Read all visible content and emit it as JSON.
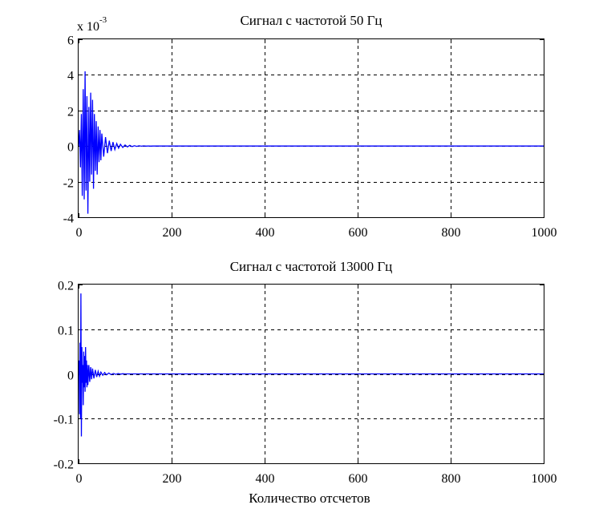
{
  "chart_data": [
    {
      "type": "line",
      "title": "Сигнал с частотой 50 Гц",
      "xlabel": "",
      "ylabel": "",
      "xlim": [
        0,
        1000
      ],
      "ylim": [
        -0.004,
        0.006
      ],
      "x_ticks": [
        0,
        200,
        400,
        600,
        800,
        1000
      ],
      "y_ticks": [
        -0.004,
        -0.002,
        0,
        0.002,
        0.004,
        0.006
      ],
      "y_tick_labels": [
        "-4",
        "-2",
        "0",
        "2",
        "4",
        "6"
      ],
      "x_tick_labels": [
        "0",
        "200",
        "400",
        "600",
        "800",
        "1000"
      ],
      "y_multiplier_text": "x 10",
      "y_multiplier_exp": "-3",
      "grid": true,
      "series": [
        {
          "color": "#0000ff",
          "x": [
            0,
            2,
            4,
            6,
            8,
            10,
            12,
            14,
            16,
            18,
            20,
            22,
            24,
            26,
            28,
            30,
            32,
            34,
            36,
            38,
            40,
            42,
            44,
            46,
            48,
            50,
            54,
            58,
            62,
            66,
            70,
            74,
            78,
            82,
            86,
            90,
            95,
            100,
            105,
            110,
            115,
            120,
            125,
            130,
            135,
            140,
            145,
            150,
            155,
            160,
            200,
            300,
            400,
            500,
            600,
            700,
            800,
            900,
            1000
          ],
          "y": [
            0,
            0.0009,
            -0.0012,
            0.0018,
            -0.0028,
            0.0032,
            -0.003,
            0.0042,
            -0.0025,
            0.0028,
            -0.0038,
            0.0022,
            -0.002,
            0.003,
            -0.0016,
            0.0026,
            -0.0024,
            0.0018,
            -0.0014,
            0.0014,
            -0.0016,
            0.0011,
            -0.0009,
            0.0009,
            -0.0008,
            0.0007,
            -0.0006,
            0.0005,
            -0.0004,
            0.0003,
            -0.00028,
            0.00022,
            -0.0002,
            0.00014,
            -0.00012,
            0.0001,
            -8e-05,
            6e-05,
            -5e-05,
            4e-05,
            -3e-05,
            2e-05,
            -2e-05,
            1.5e-05,
            -1e-05,
            1e-05,
            -5e-06,
            4e-06,
            -3e-06,
            0,
            0,
            0,
            0,
            0,
            0,
            0,
            0,
            0,
            0
          ]
        }
      ]
    },
    {
      "type": "line",
      "title": "Сигнал с частотой 13000 Гц",
      "xlabel": "Количество отсчетов",
      "ylabel": "",
      "xlim": [
        0,
        1000
      ],
      "ylim": [
        -0.2,
        0.2
      ],
      "x_ticks": [
        0,
        200,
        400,
        600,
        800,
        1000
      ],
      "y_ticks": [
        -0.2,
        -0.1,
        0,
        0.1,
        0.2
      ],
      "y_tick_labels": [
        "-0.2",
        "-0.1",
        "0",
        "0.1",
        "0.2"
      ],
      "x_tick_labels": [
        "0",
        "200",
        "400",
        "600",
        "800",
        "1000"
      ],
      "grid": true,
      "series": [
        {
          "color": "#0000ff",
          "x": [
            0,
            1,
            2,
            3,
            4,
            5,
            6,
            7,
            8,
            9,
            10,
            11,
            12,
            13,
            14,
            15,
            16,
            17,
            18,
            19,
            20,
            22,
            24,
            26,
            28,
            30,
            33,
            36,
            39,
            42,
            45,
            48,
            52,
            56,
            60,
            65,
            70,
            75,
            80,
            85,
            90,
            95,
            100,
            200,
            300,
            400,
            500,
            600,
            700,
            800,
            900,
            1000
          ],
          "y": [
            0,
            0.03,
            -0.09,
            0.07,
            -0.1,
            0.18,
            -0.14,
            0.06,
            -0.02,
            0.02,
            -0.07,
            0.05,
            -0.03,
            0.04,
            -0.04,
            0.06,
            -0.02,
            0.03,
            -0.03,
            0.02,
            -0.025,
            0.02,
            -0.018,
            0.015,
            -0.012,
            0.012,
            -0.01,
            0.009,
            -0.007,
            0.006,
            -0.005,
            0.004,
            -0.003,
            0.003,
            -0.002,
            0.002,
            -0.0015,
            0.001,
            -0.001,
            0.0007,
            -0.0005,
            0.0003,
            0,
            0,
            0,
            0,
            0,
            0,
            0,
            0,
            0,
            0
          ]
        }
      ]
    }
  ]
}
